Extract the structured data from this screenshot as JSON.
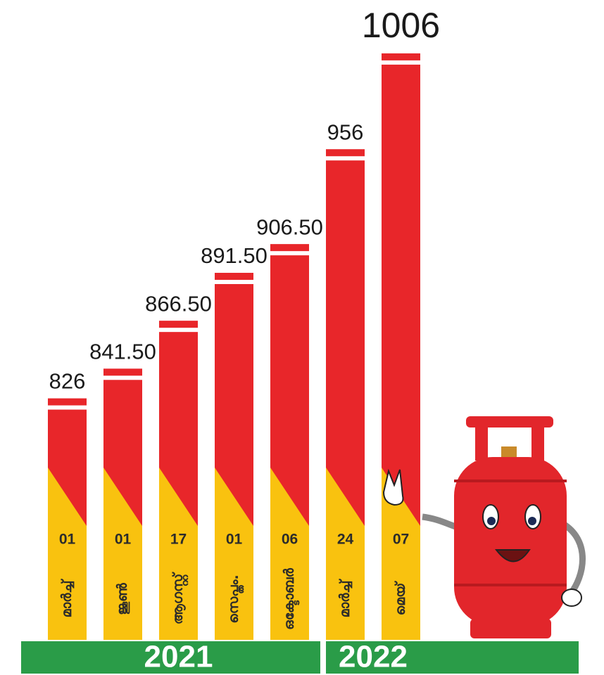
{
  "chart_data": {
    "type": "bar",
    "categories": [
      "01",
      "01",
      "17",
      "01",
      "06",
      "24",
      "07"
    ],
    "months": [
      "മാർച്ച്",
      "ജൂൺ",
      "ആഗസ്റ്റ്",
      "സെപ്തം.",
      "ഒക്ടോബർ",
      "മാർച്ച്",
      "മെയ്"
    ],
    "values": [
      826,
      841.5,
      866.5,
      891.5,
      906.5,
      956,
      1006
    ],
    "value_labels": [
      "826",
      "841.50",
      "866.50",
      "891.50",
      "906.50",
      "956",
      "1006"
    ],
    "groups": [
      {
        "label": "2021",
        "size": 5
      },
      {
        "label": "2022",
        "size": 2
      }
    ],
    "ylim": [
      700,
      1010
    ],
    "color": "#e8262a",
    "base_color": "#f9c20f",
    "band_color": "#2a9c48"
  }
}
